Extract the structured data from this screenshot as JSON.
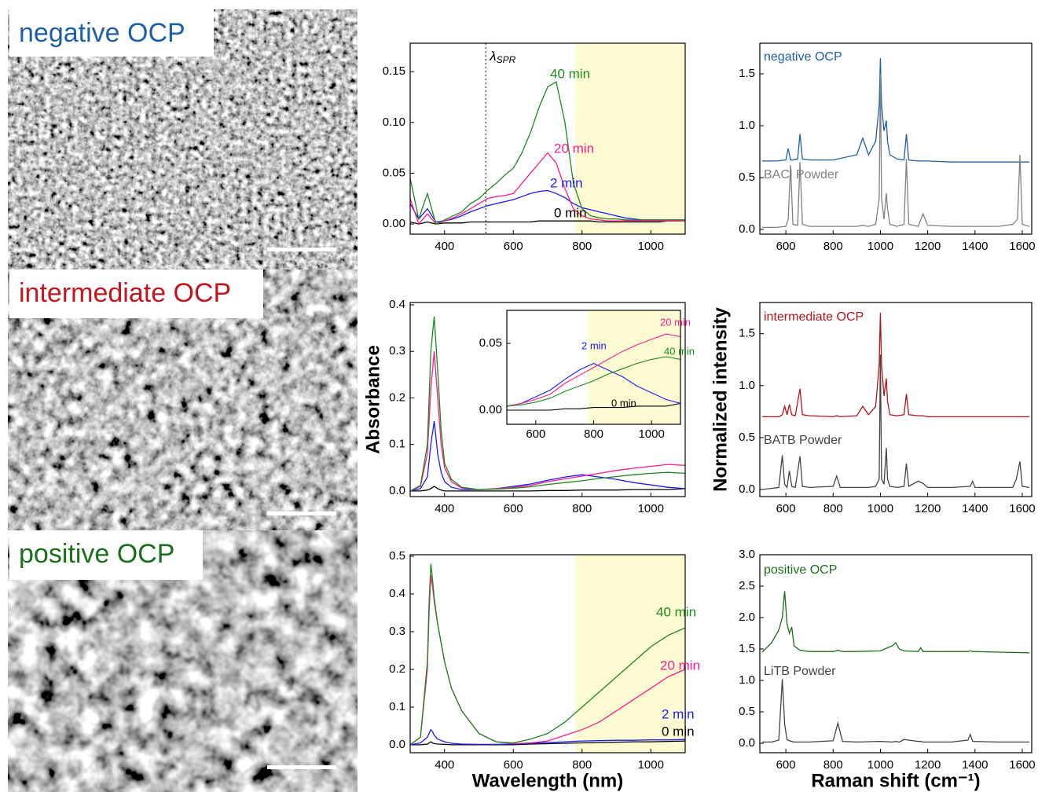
{
  "panels": [
    {
      "label": "negative OCP",
      "color": "#1f5fa8"
    },
    {
      "label": "intermediate OCP",
      "color": "#c0161f"
    },
    {
      "label": "positive OCP",
      "color": "#1b6e1b"
    }
  ],
  "chart_data": [
    {
      "type": "line",
      "xlim": [
        300,
        1100
      ],
      "ylim": [
        -0.01,
        0.178
      ],
      "xticks": [
        400,
        600,
        800,
        1000
      ],
      "yticks": [
        {
          "value": 0,
          "label": "0.00"
        },
        {
          "value": 0.05,
          "label": "0.05"
        },
        {
          "value": 0.1,
          "label": "0.10"
        },
        {
          "value": 0.15,
          "label": "0.15"
        }
      ],
      "shade": [
        780,
        1100
      ],
      "shade_color": "#fdfbd2",
      "annotation": {
        "x": 520,
        "label": "λ",
        "sub": "SPR"
      },
      "x": [
        300,
        325,
        350,
        375,
        400,
        425,
        450,
        475,
        500,
        525,
        550,
        575,
        600,
        625,
        650,
        675,
        700,
        725,
        750,
        775,
        800,
        825,
        850,
        875,
        900,
        925,
        950,
        975,
        1000,
        1025,
        1050,
        1075,
        1100
      ],
      "series": [
        {
          "name": "0 min",
          "color": "#000000",
          "values": [
            0.002,
            0.0,
            0.002,
            0.0,
            0.001,
            0.001,
            0.001,
            0.002,
            0.002,
            0.002,
            0.002,
            0.002,
            0.002,
            0.002,
            0.002,
            0.003,
            0.003,
            0.003,
            0.003,
            0.003,
            0.003,
            0.003,
            0.002,
            0.002,
            0.002,
            0.002,
            0.002,
            0.002,
            0.002,
            0.002,
            0.003,
            0.003,
            0.004
          ]
        },
        {
          "name": "2 min",
          "color": "#1a1aff",
          "values": [
            0.02,
            0.005,
            0.015,
            0.002,
            0.003,
            0.005,
            0.008,
            0.012,
            0.015,
            0.018,
            0.02,
            0.022,
            0.024,
            0.027,
            0.03,
            0.032,
            0.033,
            0.03,
            0.026,
            0.02,
            0.016,
            0.014,
            0.012,
            0.01,
            0.008,
            0.006,
            0.005,
            0.004,
            0.004,
            0.004,
            0.004,
            0.004,
            0.004
          ]
        },
        {
          "name": "20 min",
          "color": "#ff1a8c",
          "values": [
            0.025,
            0.0,
            0.01,
            0.0,
            0.003,
            0.006,
            0.01,
            0.015,
            0.02,
            0.025,
            0.027,
            0.028,
            0.03,
            0.04,
            0.05,
            0.06,
            0.07,
            0.06,
            0.035,
            0.015,
            0.008,
            0.005,
            0.004,
            0.003,
            0.003,
            0.003,
            0.003,
            0.003,
            0.003,
            0.003,
            0.003,
            0.003,
            0.003
          ]
        },
        {
          "name": "40 min",
          "color": "#1a8a1a",
          "values": [
            0.045,
            0.005,
            0.03,
            0.0,
            0.004,
            0.008,
            0.012,
            0.02,
            0.025,
            0.033,
            0.04,
            0.048,
            0.055,
            0.07,
            0.09,
            0.115,
            0.135,
            0.14,
            0.1,
            0.04,
            0.015,
            0.008,
            0.006,
            0.005,
            0.005,
            0.004,
            0.004,
            0.004,
            0.004,
            0.004,
            0.004,
            0.004,
            0.004
          ]
        }
      ]
    },
    {
      "type": "line",
      "ylabel": "Absorbance",
      "xlim": [
        300,
        1100
      ],
      "ylim": [
        -0.012,
        0.405
      ],
      "xticks": [
        400,
        600,
        800,
        1000
      ],
      "yticks": [
        {
          "value": 0,
          "label": "0.0"
        },
        0.1,
        0.2,
        0.3,
        0.4
      ],
      "x": [
        300,
        330,
        350,
        360,
        370,
        380,
        390,
        400,
        420,
        450,
        500,
        550,
        600,
        650,
        700,
        750,
        800,
        850,
        900,
        950,
        1000,
        1050,
        1100
      ],
      "series": [
        {
          "name": "0 min",
          "color": "#000000",
          "values": [
            0.0,
            0.0,
            0.002,
            0.005,
            0.01,
            0.005,
            0.002,
            0.0,
            0.0,
            0.0,
            0.0,
            0.0,
            0.0,
            0.0,
            0.001,
            0.001,
            0.002,
            0.002,
            0.002,
            0.003,
            0.003,
            0.003,
            0.005
          ]
        },
        {
          "name": "2 min",
          "color": "#1a1aff",
          "values": [
            0.0,
            0.005,
            0.03,
            0.1,
            0.15,
            0.08,
            0.04,
            0.02,
            0.008,
            0.003,
            0.003,
            0.005,
            0.01,
            0.015,
            0.023,
            0.03,
            0.035,
            0.03,
            0.025,
            0.018,
            0.013,
            0.008,
            0.005
          ]
        },
        {
          "name": "20 min",
          "color": "#ff1a8c",
          "values": [
            0.0,
            0.01,
            0.08,
            0.22,
            0.3,
            0.2,
            0.1,
            0.05,
            0.02,
            0.006,
            0.003,
            0.005,
            0.008,
            0.012,
            0.02,
            0.026,
            0.032,
            0.038,
            0.044,
            0.049,
            0.053,
            0.057,
            0.055
          ]
        },
        {
          "name": "40 min",
          "color": "#1a8a1a",
          "values": [
            0.0,
            0.012,
            0.1,
            0.3,
            0.375,
            0.26,
            0.13,
            0.06,
            0.025,
            0.008,
            0.003,
            0.004,
            0.006,
            0.009,
            0.014,
            0.018,
            0.022,
            0.027,
            0.031,
            0.035,
            0.038,
            0.04,
            0.038
          ]
        }
      ],
      "inset": {
        "xlim": [
          500,
          1100
        ],
        "ylim": [
          -0.0106,
          0.0747
        ],
        "xticks": [
          600,
          800,
          1000
        ],
        "yticks": [
          {
            "value": 0,
            "label": "0.00"
          },
          0.05
        ],
        "shade": [
          780,
          1100
        ]
      }
    },
    {
      "type": "line",
      "xlabel": "Wavelength (nm)",
      "xlim": [
        300,
        1100
      ],
      "ylim": [
        -0.021,
        0.504
      ],
      "xticks": [
        400,
        600,
        800,
        1000
      ],
      "yticks": [
        {
          "value": 0,
          "label": "0.0"
        },
        0.1,
        0.2,
        0.3,
        0.4,
        0.5
      ],
      "shade": [
        780,
        1100
      ],
      "shade_color": "#fdfbd2",
      "x": [
        300,
        330,
        350,
        355,
        360,
        365,
        370,
        380,
        400,
        420,
        450,
        500,
        550,
        600,
        650,
        700,
        750,
        800,
        850,
        900,
        950,
        1000,
        1050,
        1100
      ],
      "series": [
        {
          "name": "0 min",
          "color": "#000000",
          "values": [
            0,
            0,
            0.002,
            0.005,
            0.008,
            0.005,
            0.003,
            0.002,
            0.001,
            0,
            0,
            0,
            0,
            0,
            0.002,
            0.003,
            0.004,
            0.005,
            0.006,
            0.007,
            0.008,
            0.008,
            0.009,
            0.01
          ]
        },
        {
          "name": "2 min",
          "color": "#1a1aff",
          "values": [
            0,
            0.005,
            0.02,
            0.03,
            0.04,
            0.035,
            0.025,
            0.015,
            0.008,
            0.004,
            0.002,
            0.001,
            0.001,
            0.002,
            0.004,
            0.006,
            0.008,
            0.01,
            0.011,
            0.012,
            0.012,
            0.013,
            0.013,
            0.014
          ]
        },
        {
          "name": "20 min",
          "color": "#ff1a8c",
          "values": [
            0,
            0.02,
            0.2,
            0.35,
            0.45,
            0.42,
            0.38,
            0.32,
            0.22,
            0.15,
            0.09,
            0.03,
            0.008,
            0.003,
            0.005,
            0.01,
            0.025,
            0.04,
            0.06,
            0.09,
            0.12,
            0.15,
            0.18,
            0.2
          ]
        },
        {
          "name": "40 min",
          "color": "#1a8a1a",
          "values": [
            0,
            0.02,
            0.22,
            0.38,
            0.48,
            0.44,
            0.39,
            0.32,
            0.22,
            0.15,
            0.09,
            0.03,
            0.008,
            0.005,
            0.015,
            0.03,
            0.06,
            0.1,
            0.14,
            0.18,
            0.22,
            0.26,
            0.29,
            0.31
          ]
        }
      ]
    },
    {
      "type": "line",
      "xlim": [
        490,
        1640
      ],
      "ylim": [
        -0.045,
        1.795
      ],
      "xticks": [
        600,
        800,
        1000,
        1200,
        1400,
        1600
      ],
      "yticks": [
        {
          "value": 0,
          "label": "0.0"
        },
        0.5,
        {
          "value": 1,
          "label": "1.0"
        },
        1.5
      ],
      "x": [
        500,
        560,
        600,
        610,
        620,
        630,
        650,
        660,
        670,
        700,
        800,
        900,
        925,
        950,
        980,
        995,
        1000,
        1005,
        1015,
        1025,
        1030,
        1040,
        1070,
        1100,
        1110,
        1120,
        1160,
        1180,
        1200,
        1300,
        1400,
        1500,
        1560,
        1580,
        1590,
        1600,
        1630
      ],
      "series": [
        {
          "name": "negative OCP",
          "color": "#1f5fa8",
          "values": [
            0.66,
            0.66,
            0.67,
            0.78,
            0.67,
            0.67,
            0.68,
            0.92,
            0.68,
            0.67,
            0.67,
            0.72,
            0.88,
            0.72,
            0.85,
            1.2,
            1.65,
            1.2,
            0.95,
            1.05,
            0.85,
            0.72,
            0.68,
            0.67,
            0.92,
            0.67,
            0.66,
            0.66,
            0.66,
            0.65,
            0.65,
            0.65,
            0.65,
            0.65,
            0.65,
            0.65,
            0.65
          ]
        },
        {
          "name": "BACl Powder",
          "color": "#808080",
          "values": [
            0.02,
            0.02,
            0.03,
            0.1,
            0.62,
            0.05,
            0.04,
            0.65,
            0.05,
            0.03,
            0.03,
            0.03,
            0.04,
            0.03,
            0.05,
            0.3,
            1.5,
            0.3,
            0.1,
            0.35,
            0.2,
            0.05,
            0.03,
            0.05,
            0.68,
            0.05,
            0.03,
            0.15,
            0.04,
            0.03,
            0.03,
            0.03,
            0.05,
            0.1,
            0.72,
            0.05,
            0.03
          ]
        }
      ]
    },
    {
      "type": "line",
      "ylabel": "Normalized intensity",
      "xlim": [
        490,
        1640
      ],
      "ylim": [
        -0.068,
        1.8
      ],
      "xticks": [
        600,
        800,
        1000,
        1200,
        1400,
        1600
      ],
      "yticks": [
        {
          "value": 0,
          "label": "0.0"
        },
        0.5,
        {
          "value": 1,
          "label": "1.0"
        },
        1.5
      ],
      "x": [
        500,
        570,
        585,
        595,
        605,
        615,
        625,
        640,
        660,
        670,
        700,
        800,
        815,
        830,
        900,
        925,
        950,
        980,
        995,
        1000,
        1005,
        1015,
        1025,
        1030,
        1040,
        1070,
        1100,
        1110,
        1120,
        1160,
        1180,
        1200,
        1300,
        1380,
        1390,
        1400,
        1500,
        1560,
        1575,
        1590,
        1600,
        1630
      ],
      "series": [
        {
          "name": "intermediate OCP",
          "color": "#b0141c",
          "values": [
            0.7,
            0.7,
            0.72,
            0.8,
            0.72,
            0.82,
            0.72,
            0.71,
            0.97,
            0.72,
            0.71,
            0.7,
            0.71,
            0.7,
            0.71,
            0.8,
            0.72,
            0.8,
            1.2,
            1.7,
            1.2,
            0.9,
            1.07,
            0.85,
            0.72,
            0.71,
            0.72,
            0.92,
            0.72,
            0.71,
            0.71,
            0.7,
            0.7,
            0.7,
            0.7,
            0.7,
            0.7,
            0.7,
            0.7,
            0.7,
            0.7,
            0.7
          ]
        },
        {
          "name": "BATB Powder",
          "color": "#444444",
          "values": [
            0.0,
            0.02,
            0.33,
            0.05,
            0.02,
            0.18,
            0.03,
            0.02,
            0.32,
            0.03,
            0.02,
            0.03,
            0.13,
            0.02,
            0.02,
            0.02,
            0.02,
            0.03,
            0.1,
            1.3,
            0.1,
            0.05,
            0.4,
            0.1,
            0.03,
            0.02,
            0.03,
            0.25,
            0.03,
            0.08,
            0.06,
            0.02,
            0.02,
            0.03,
            0.08,
            0.02,
            0.02,
            0.02,
            0.1,
            0.27,
            0.03,
            0.02
          ]
        }
      ]
    },
    {
      "type": "line",
      "xlabel": "Raman shift (cm⁻¹)",
      "xlim": [
        490,
        1640
      ],
      "ylim": [
        -0.15,
        3.0
      ],
      "xticks": [
        600,
        800,
        1000,
        1200,
        1400,
        1600
      ],
      "yticks": [
        {
          "value": 0,
          "label": "0.0"
        },
        0.5,
        {
          "value": 1,
          "label": "1.0"
        },
        1.5,
        {
          "value": 2,
          "label": "2.0"
        },
        2.5,
        {
          "value": 3,
          "label": "3.0"
        }
      ],
      "x": [
        500,
        540,
        570,
        585,
        595,
        605,
        615,
        625,
        635,
        660,
        700,
        800,
        820,
        840,
        900,
        1000,
        1050,
        1065,
        1080,
        1100,
        1160,
        1170,
        1180,
        1300,
        1370,
        1380,
        1390,
        1500,
        1630
      ],
      "series": [
        {
          "name": "positive OCP",
          "color": "#1b6e1b",
          "values": [
            1.45,
            1.6,
            1.8,
            2.0,
            2.42,
            1.9,
            1.75,
            1.85,
            1.55,
            1.48,
            1.46,
            1.46,
            1.48,
            1.46,
            1.46,
            1.47,
            1.55,
            1.6,
            1.5,
            1.47,
            1.46,
            1.52,
            1.46,
            1.46,
            1.46,
            1.47,
            1.46,
            1.45,
            1.44
          ]
        },
        {
          "name": "LiTB Powder",
          "color": "#444444",
          "values": [
            0.02,
            0.02,
            0.05,
            1.02,
            0.3,
            0.06,
            0.04,
            0.03,
            0.02,
            0.02,
            0.02,
            0.04,
            0.32,
            0.03,
            0.02,
            0.03,
            0.02,
            0.03,
            0.02,
            0.06,
            0.03,
            0.03,
            0.02,
            0.02,
            0.05,
            0.14,
            0.03,
            0.02,
            0.02
          ]
        }
      ]
    }
  ]
}
